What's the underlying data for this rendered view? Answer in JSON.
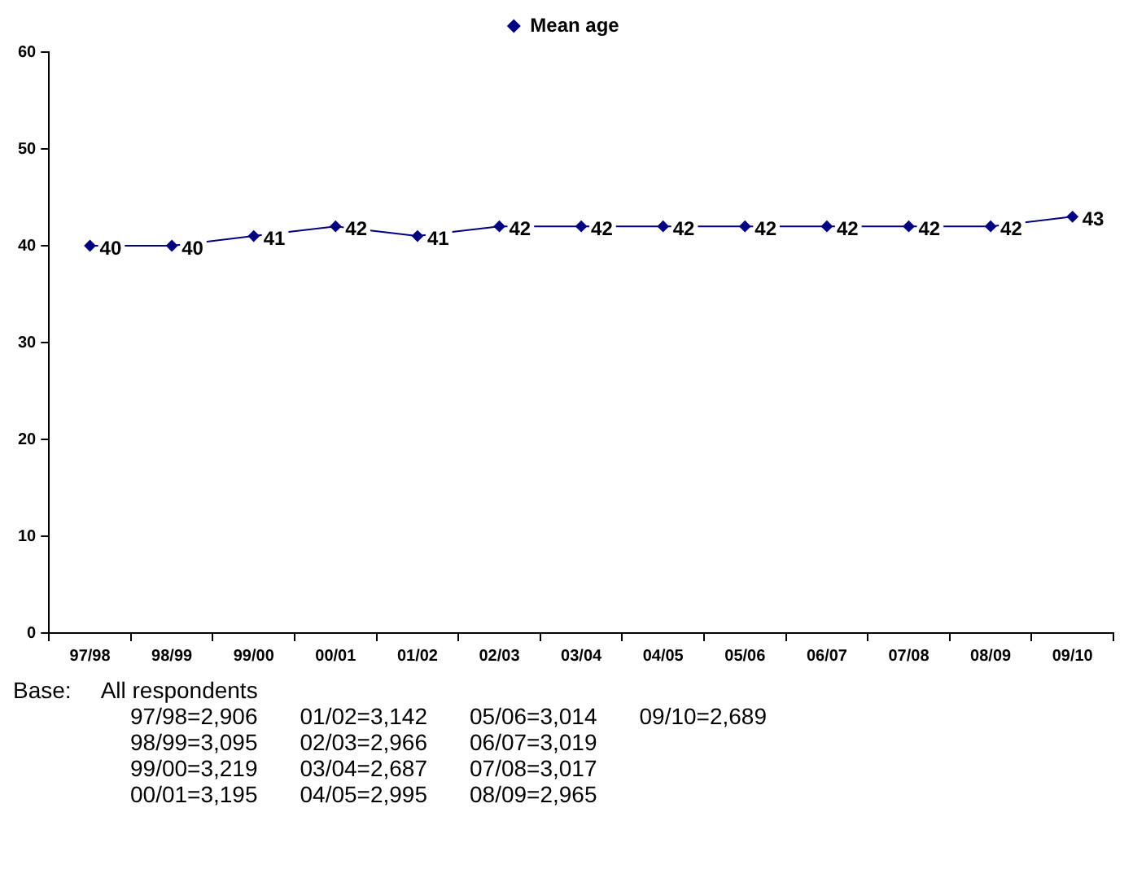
{
  "chart_data": {
    "type": "line",
    "categories": [
      "97/98",
      "98/99",
      "99/00",
      "00/01",
      "01/02",
      "02/03",
      "03/04",
      "04/05",
      "05/06",
      "06/07",
      "07/08",
      "08/09",
      "09/10"
    ],
    "series": [
      {
        "name": "Mean age",
        "color": "#000080",
        "values": [
          40,
          40,
          41,
          42,
          41,
          42,
          42,
          42,
          42,
          42,
          42,
          42,
          43
        ]
      }
    ],
    "ylim": [
      0,
      60
    ],
    "yticks": [
      0,
      10,
      20,
      30,
      40,
      50,
      60
    ],
    "grid": false,
    "legend": "top",
    "marker": "diamond",
    "line_style": "solid",
    "data_labels": true,
    "annotations": [
      "Base:",
      "All respondents",
      "97/98=2,906",
      "98/99=3,095",
      "99/00=3,219",
      "00/01=3,195",
      "01/02=3,142",
      "02/03=2,966",
      "03/04=2,687",
      "04/05=2,995",
      "05/06=3,014",
      "06/07=3,019",
      "07/08=3,017",
      "08/09=2,965",
      "09/10=2,689"
    ]
  }
}
